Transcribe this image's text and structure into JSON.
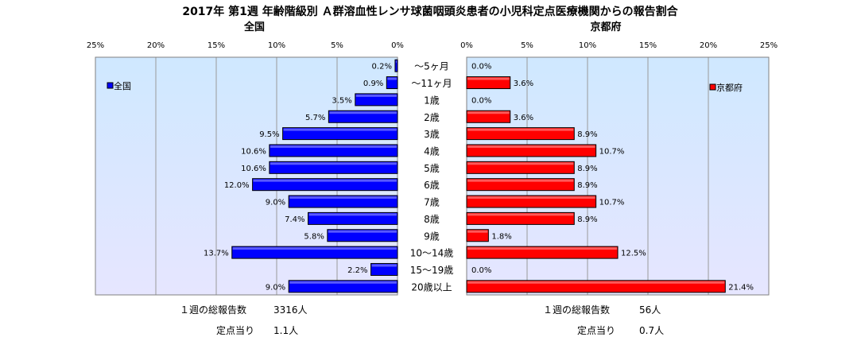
{
  "title": "2017年 第1週 年齢階級別 Ａ群溶血性レンサ球菌咽頭炎患者の小児科定点医療機関からの報告割合",
  "colors": {
    "national": "#0000ff",
    "kyoto": "#ff0000",
    "plot_bg_top": "#cfe8ff",
    "plot_bg_bottom": "#e6e6ff"
  },
  "footer": {
    "national_total_label": "１週の総報告数",
    "national_total_value": "3316人",
    "national_per_label": "定点当り",
    "national_per_value": "1.1人",
    "kyoto_total_label": "１週の総報告数",
    "kyoto_total_value": "56人",
    "kyoto_per_label": "定点当り",
    "kyoto_per_value": "0.7人"
  },
  "chart_data": [
    {
      "type": "bar",
      "orientation": "horizontal",
      "direction": "reversed",
      "title": "全国",
      "xlim": [
        0,
        25
      ],
      "xticks": [
        "25%",
        "20%",
        "15%",
        "10%",
        "5%",
        "0%"
      ],
      "grid": true,
      "legend": {
        "entries": [
          "全国"
        ],
        "placement": "top-left"
      },
      "categories": [
        "〜5ヶ月",
        "〜11ヶ月",
        "1歳",
        "2歳",
        "3歳",
        "4歳",
        "5歳",
        "6歳",
        "7歳",
        "8歳",
        "9歳",
        "10〜14歳",
        "15〜19歳",
        "20歳以上"
      ],
      "series": [
        {
          "name": "全国",
          "color": "#0000ff",
          "values": [
            0.2,
            0.9,
            3.5,
            5.7,
            9.5,
            10.6,
            10.6,
            12.0,
            9.0,
            7.4,
            5.8,
            13.7,
            2.2,
            9.0
          ],
          "labels": [
            "0.2%",
            "0.9%",
            "3.5%",
            "5.7%",
            "9.5%",
            "10.6%",
            "10.6%",
            "12.0%",
            "9.0%",
            "7.4%",
            "5.8%",
            "13.7%",
            "2.2%",
            "9.0%"
          ]
        }
      ]
    },
    {
      "type": "bar",
      "orientation": "horizontal",
      "title": "京都府",
      "xlim": [
        0,
        25
      ],
      "xticks": [
        "0%",
        "5%",
        "10%",
        "15%",
        "20%",
        "25%"
      ],
      "grid": true,
      "legend": {
        "entries": [
          "京都府"
        ],
        "placement": "top-right"
      },
      "categories": [
        "〜5ヶ月",
        "〜11ヶ月",
        "1歳",
        "2歳",
        "3歳",
        "4歳",
        "5歳",
        "6歳",
        "7歳",
        "8歳",
        "9歳",
        "10〜14歳",
        "15〜19歳",
        "20歳以上"
      ],
      "series": [
        {
          "name": "京都府",
          "color": "#ff0000",
          "values": [
            0.0,
            3.6,
            0.0,
            3.6,
            8.9,
            10.7,
            8.9,
            8.9,
            10.7,
            8.9,
            1.8,
            12.5,
            0.0,
            21.4
          ],
          "labels": [
            "0.0%",
            "3.6%",
            "0.0%",
            "3.6%",
            "8.9%",
            "10.7%",
            "8.9%",
            "8.9%",
            "10.7%",
            "8.9%",
            "1.8%",
            "12.5%",
            "0.0%",
            "21.4%"
          ]
        }
      ]
    }
  ]
}
